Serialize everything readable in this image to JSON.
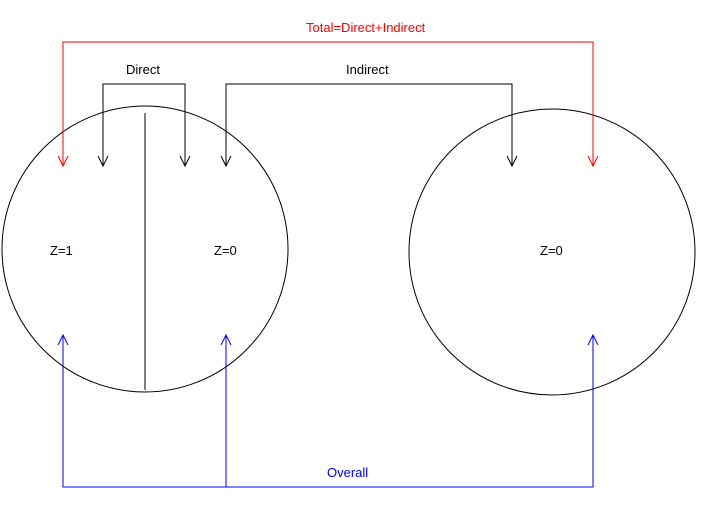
{
  "diagram": {
    "labels": {
      "total": "Total=Direct+Indirect",
      "direct": "Direct",
      "indirect": "Indirect",
      "overall": "Overall"
    },
    "circles": {
      "left": {
        "z_left": "Z=1",
        "z_right": "Z=0"
      },
      "right": {
        "z": "Z=0"
      }
    },
    "colors": {
      "total": "#ff0000",
      "direct": "#000000",
      "indirect": "#000000",
      "overall": "#0000ff",
      "circle_stroke": "#000000"
    }
  }
}
